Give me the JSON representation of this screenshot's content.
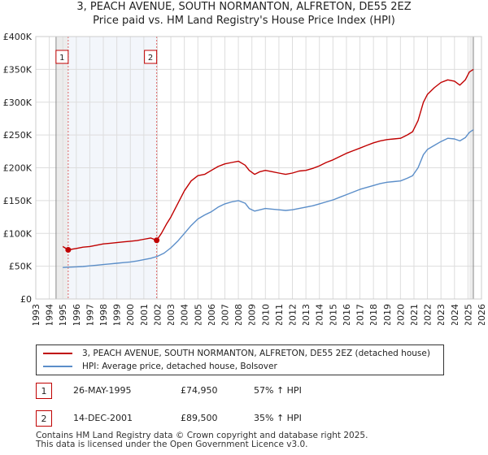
{
  "title_line1": "3, PEACH AVENUE, SOUTH NORMANTON, ALFRETON, DE55 2EZ",
  "title_line2": "Price paid vs. HM Land Registry's House Price Index (HPI)",
  "chart_data": {
    "type": "line",
    "title": "3, PEACH AVENUE, SOUTH NORMANTON, ALFRETON, DE55 2EZ — Price paid vs. HM Land Registry's House Price Index (HPI)",
    "xlabel": "",
    "ylabel": "",
    "xlim": [
      1993,
      2026
    ],
    "ylim": [
      0,
      400000
    ],
    "x_ticks": [
      1993,
      1994,
      1995,
      1996,
      1997,
      1998,
      1999,
      2000,
      2001,
      2002,
      2003,
      2004,
      2005,
      2006,
      2007,
      2008,
      2009,
      2010,
      2011,
      2012,
      2013,
      2014,
      2015,
      2016,
      2017,
      2018,
      2019,
      2020,
      2021,
      2022,
      2023,
      2024,
      2025,
      2026
    ],
    "y_ticks": [
      {
        "value": 0,
        "label": "£0"
      },
      {
        "value": 50000,
        "label": "£50K"
      },
      {
        "value": 100000,
        "label": "£100K"
      },
      {
        "value": 150000,
        "label": "£150K"
      },
      {
        "value": 200000,
        "label": "£200K"
      },
      {
        "value": 250000,
        "label": "£250K"
      },
      {
        "value": 300000,
        "label": "£300K"
      },
      {
        "value": 350000,
        "label": "£350K"
      },
      {
        "value": 400000,
        "label": "£400K"
      }
    ],
    "grid": true,
    "series": [
      {
        "name": "3, PEACH AVENUE, SOUTH NORMANTON, ALFRETON, DE55 2EZ (detached house)",
        "color": "#c00000",
        "x": [
          1995.0,
          1995.4,
          1996.0,
          1996.5,
          1997.0,
          1997.5,
          1998.0,
          1998.5,
          1999.0,
          1999.5,
          2000.0,
          2000.5,
          2001.0,
          2001.5,
          2001.95,
          2002.3,
          2002.7,
          2003.0,
          2003.5,
          2004.0,
          2004.5,
          2005.0,
          2005.5,
          2006.0,
          2006.5,
          2007.0,
          2007.5,
          2008.0,
          2008.5,
          2008.8,
          2009.2,
          2009.6,
          2010.0,
          2010.5,
          2011.0,
          2011.5,
          2012.0,
          2012.5,
          2013.0,
          2013.5,
          2014.0,
          2014.5,
          2015.0,
          2015.5,
          2016.0,
          2016.5,
          2017.0,
          2017.5,
          2018.0,
          2018.5,
          2019.0,
          2019.5,
          2020.0,
          2020.5,
          2020.9,
          2021.3,
          2021.7,
          2022.0,
          2022.5,
          2023.0,
          2023.5,
          2024.0,
          2024.4,
          2024.8,
          2025.1,
          2025.4
        ],
        "values": [
          80000,
          74950,
          77000,
          79000,
          80000,
          82000,
          84000,
          85000,
          86000,
          87000,
          88000,
          89000,
          91000,
          93000,
          89500,
          100000,
          115000,
          125000,
          145000,
          165000,
          180000,
          188000,
          190000,
          196000,
          202000,
          206000,
          208000,
          210000,
          204000,
          196000,
          190000,
          194000,
          196000,
          194000,
          192000,
          190000,
          192000,
          195000,
          196000,
          199000,
          203000,
          208000,
          212000,
          217000,
          222000,
          226000,
          230000,
          234000,
          238000,
          241000,
          243000,
          244000,
          245000,
          250000,
          255000,
          272000,
          300000,
          312000,
          322000,
          330000,
          334000,
          332000,
          326000,
          334000,
          346000,
          350000
        ]
      },
      {
        "name": "HPI: Average price, detached house, Bolsover",
        "color": "#5b8ec9",
        "x": [
          1995.0,
          1995.5,
          1996.0,
          1996.5,
          1997.0,
          1997.5,
          1998.0,
          1998.5,
          1999.0,
          1999.5,
          2000.0,
          2000.5,
          2001.0,
          2001.5,
          2002.0,
          2002.5,
          2003.0,
          2003.5,
          2004.0,
          2004.5,
          2005.0,
          2005.5,
          2006.0,
          2006.5,
          2007.0,
          2007.5,
          2008.0,
          2008.5,
          2008.8,
          2009.2,
          2009.6,
          2010.0,
          2010.5,
          2011.0,
          2011.5,
          2012.0,
          2012.5,
          2013.0,
          2013.5,
          2014.0,
          2014.5,
          2015.0,
          2015.5,
          2016.0,
          2016.5,
          2017.0,
          2017.5,
          2018.0,
          2018.5,
          2019.0,
          2019.5,
          2020.0,
          2020.5,
          2020.9,
          2021.3,
          2021.7,
          2022.0,
          2022.5,
          2023.0,
          2023.5,
          2024.0,
          2024.4,
          2024.8,
          2025.1,
          2025.4
        ],
        "values": [
          48000,
          48500,
          49000,
          49500,
          50500,
          51500,
          52500,
          53500,
          54500,
          55500,
          56500,
          58000,
          60000,
          62000,
          65000,
          70000,
          78000,
          88000,
          100000,
          112000,
          122000,
          128000,
          133000,
          140000,
          145000,
          148000,
          150000,
          146000,
          138000,
          134000,
          136000,
          138000,
          137000,
          136000,
          135000,
          136000,
          138000,
          140000,
          142000,
          145000,
          148000,
          151000,
          155000,
          159000,
          163000,
          167000,
          170000,
          173000,
          176000,
          178000,
          179000,
          180000,
          184000,
          188000,
          200000,
          220000,
          228000,
          234000,
          240000,
          245000,
          244000,
          241000,
          246000,
          254000,
          258000
        ]
      }
    ],
    "sales": [
      {
        "label": "1",
        "x": 1995.4,
        "value": 74950
      },
      {
        "label": "2",
        "x": 2001.95,
        "value": 89500
      }
    ]
  },
  "legend": {
    "property": "3, PEACH AVENUE, SOUTH NORMANTON, ALFRETON, DE55 2EZ (detached house)",
    "hpi": "HPI: Average price, detached house, Bolsover"
  },
  "transactions": [
    {
      "num": "1",
      "date": "26-MAY-1995",
      "price": "£74,950",
      "hpi": "57% ↑ HPI"
    },
    {
      "num": "2",
      "date": "14-DEC-2001",
      "price": "£89,500",
      "hpi": "35% ↑ HPI"
    }
  ],
  "footer_line1": "Contains HM Land Registry data © Crown copyright and database right 2025.",
  "footer_line2": "This data is licensed under the Open Government Licence v3.0."
}
